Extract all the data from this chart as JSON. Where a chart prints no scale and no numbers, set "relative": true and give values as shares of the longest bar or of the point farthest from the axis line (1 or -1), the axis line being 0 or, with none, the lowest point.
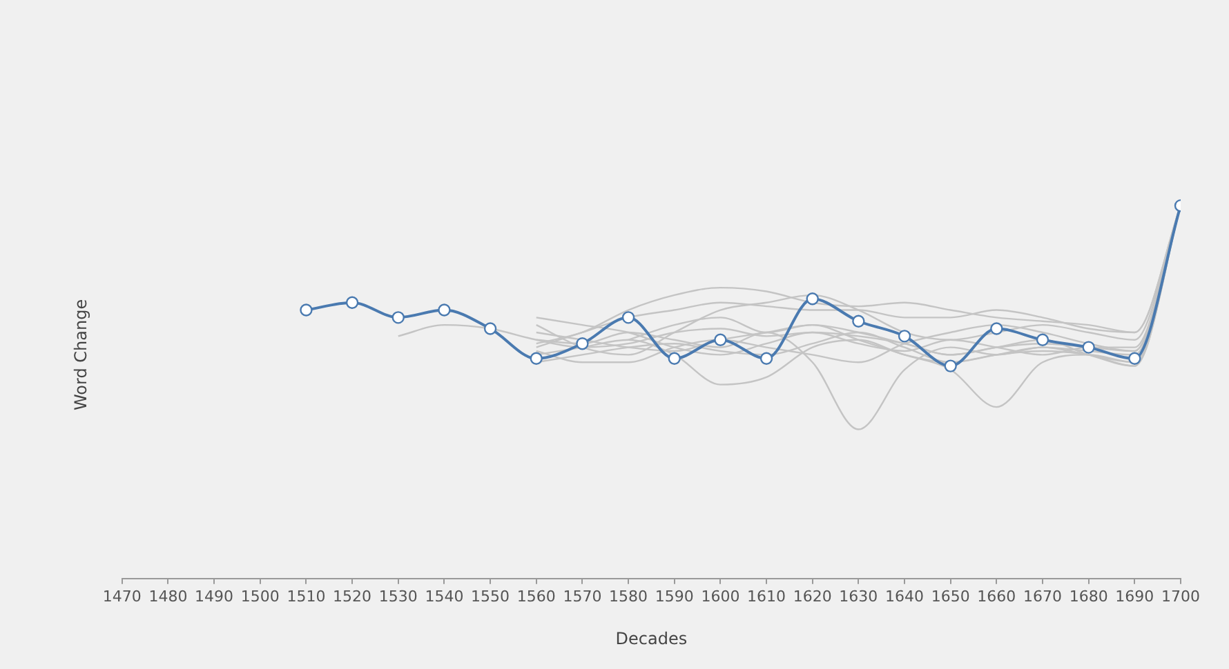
{
  "chart_data": {
    "type": "line",
    "xlabel": "Decades",
    "ylabel": "Word Change",
    "relative": true,
    "grid": false,
    "legend": false,
    "line_style": "solid",
    "xlim": [
      1470,
      1700
    ],
    "xticks": [
      1470,
      1480,
      1490,
      1500,
      1510,
      1520,
      1530,
      1540,
      1550,
      1560,
      1570,
      1580,
      1590,
      1600,
      1610,
      1620,
      1630,
      1640,
      1650,
      1660,
      1670,
      1680,
      1690,
      1700
    ],
    "series": [
      {
        "color": "#c4c4c4",
        "marker": "none",
        "x": [
          1530,
          1540,
          1550,
          1560,
          1570,
          1580,
          1590,
          1600,
          1610,
          1620,
          1630,
          1640,
          1650,
          1660,
          1670,
          1680,
          1690,
          1700
        ],
        "values": [
          0.65,
          0.68,
          0.67,
          0.64,
          0.62,
          0.63,
          0.66,
          0.67,
          0.65,
          0.66,
          0.65,
          0.63,
          0.6,
          0.62,
          0.63,
          0.62,
          0.61,
          1
        ]
      },
      {
        "color": "#c4c4c4",
        "marker": "none",
        "x": [
          1560,
          1570,
          1580,
          1590,
          1600,
          1610,
          1620,
          1630,
          1640,
          1650,
          1660,
          1670,
          1680,
          1690,
          1700
        ],
        "values": [
          0.68,
          0.62,
          0.6,
          0.66,
          0.72,
          0.74,
          0.76,
          0.72,
          0.66,
          0.64,
          0.66,
          0.68,
          0.66,
          0.64,
          1
        ]
      },
      {
        "color": "#c4c4c4",
        "marker": "none",
        "x": [
          1560,
          1570,
          1580,
          1590,
          1600,
          1610,
          1620,
          1630,
          1640,
          1650,
          1660,
          1670,
          1680,
          1690,
          1700
        ],
        "values": [
          0.62,
          0.66,
          0.7,
          0.72,
          0.74,
          0.73,
          0.72,
          0.72,
          0.7,
          0.7,
          0.72,
          0.7,
          0.67,
          0.66,
          1
        ]
      },
      {
        "color": "#c4c4c4",
        "marker": "none",
        "x": [
          1560,
          1570,
          1580,
          1590,
          1600,
          1610,
          1620,
          1630,
          1640,
          1650,
          1660,
          1670,
          1680,
          1690,
          1700
        ],
        "values": [
          0.64,
          0.63,
          0.66,
          0.64,
          0.62,
          0.66,
          0.58,
          0.4,
          0.56,
          0.62,
          0.6,
          0.62,
          0.61,
          0.6,
          1
        ]
      },
      {
        "color": "#c4c4c4",
        "marker": "none",
        "x": [
          1560,
          1570,
          1580,
          1590,
          1600,
          1610,
          1620,
          1630,
          1640,
          1650,
          1660,
          1670,
          1680,
          1690,
          1700
        ],
        "values": [
          0.66,
          0.64,
          0.62,
          0.61,
          0.64,
          0.66,
          0.68,
          0.64,
          0.6,
          0.56,
          0.46,
          0.58,
          0.6,
          0.58,
          1
        ]
      },
      {
        "color": "#c4c4c4",
        "marker": "none",
        "x": [
          1560,
          1570,
          1580,
          1590,
          1600,
          1610,
          1620,
          1630,
          1640,
          1650,
          1660,
          1670,
          1680,
          1690,
          1700
        ],
        "values": [
          0.6,
          0.62,
          0.64,
          0.6,
          0.52,
          0.54,
          0.62,
          0.64,
          0.6,
          0.58,
          0.6,
          0.62,
          0.6,
          0.58,
          1
        ]
      },
      {
        "color": "#c4c4c4",
        "marker": "none",
        "x": [
          1560,
          1570,
          1580,
          1590,
          1600,
          1610,
          1620,
          1630,
          1640,
          1650,
          1660,
          1670,
          1680,
          1690,
          1700
        ],
        "values": [
          0.63,
          0.66,
          0.72,
          0.76,
          0.78,
          0.77,
          0.74,
          0.73,
          0.74,
          0.72,
          0.7,
          0.69,
          0.68,
          0.66,
          1
        ]
      },
      {
        "color": "#c4c4c4",
        "marker": "none",
        "x": [
          1560,
          1570,
          1580,
          1590,
          1600,
          1610,
          1620,
          1630,
          1640,
          1650,
          1660,
          1670,
          1680,
          1690,
          1700
        ],
        "values": [
          0.58,
          0.6,
          0.62,
          0.63,
          0.61,
          0.6,
          0.63,
          0.66,
          0.62,
          0.58,
          0.6,
          0.61,
          0.6,
          0.57,
          1
        ]
      },
      {
        "color": "#c4c4c4",
        "marker": "none",
        "x": [
          1560,
          1570,
          1580,
          1590,
          1600,
          1610,
          1620,
          1630,
          1640,
          1650,
          1660,
          1670,
          1680,
          1690,
          1700
        ],
        "values": [
          0.61,
          0.58,
          0.58,
          0.62,
          0.64,
          0.62,
          0.6,
          0.58,
          0.63,
          0.66,
          0.68,
          0.66,
          0.63,
          0.61,
          1
        ]
      },
      {
        "color": "#c4c4c4",
        "marker": "none",
        "x": [
          1560,
          1570,
          1580,
          1590,
          1600,
          1610,
          1620,
          1630,
          1640,
          1650,
          1660,
          1670,
          1680,
          1690,
          1700
        ],
        "values": [
          0.7,
          0.68,
          0.66,
          0.62,
          0.6,
          0.63,
          0.66,
          0.63,
          0.61,
          0.64,
          0.62,
          0.6,
          0.62,
          0.62,
          1
        ]
      },
      {
        "color": "#c4c4c4",
        "marker": "none",
        "x": [
          1580,
          1590,
          1600,
          1610,
          1620,
          1630,
          1640,
          1650,
          1660,
          1670,
          1680,
          1690,
          1700
        ],
        "values": [
          0.64,
          0.68,
          0.7,
          0.66,
          0.68,
          0.66,
          0.63,
          0.6,
          0.62,
          0.64,
          0.6,
          0.57,
          1
        ]
      },
      {
        "color": "#4a7ab0",
        "marker": "circle",
        "x": [
          1510,
          1520,
          1530,
          1540,
          1550,
          1560,
          1570,
          1580,
          1590,
          1600,
          1610,
          1620,
          1630,
          1640,
          1650,
          1660,
          1670,
          1680,
          1690,
          1700
        ],
        "values": [
          0.72,
          0.74,
          0.7,
          0.72,
          0.67,
          0.59,
          0.63,
          0.7,
          0.59,
          0.64,
          0.59,
          0.75,
          0.69,
          0.65,
          0.57,
          0.67,
          0.64,
          0.62,
          0.59,
          1
        ]
      }
    ]
  }
}
